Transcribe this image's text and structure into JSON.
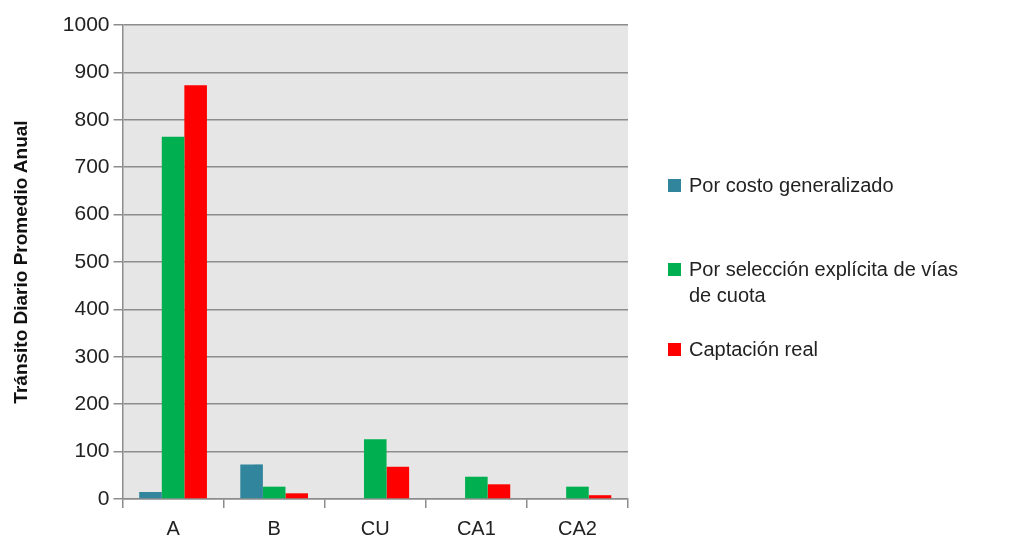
{
  "chart_data": {
    "type": "bar",
    "ylabel": "Tránsito Diario Promedio Anual",
    "categories": [
      "A",
      "B",
      "CU",
      "CA1",
      "CA2"
    ],
    "series": [
      {
        "name": "Por costo generalizado",
        "color": "#31859c",
        "values": [
          15,
          73,
          0,
          0,
          0
        ]
      },
      {
        "name": "Por selección explícita de vías de cuota",
        "color": "#00b050",
        "values": [
          764,
          26,
          126,
          47,
          26
        ]
      },
      {
        "name": "Captación real",
        "color": "#ff0000",
        "values": [
          873,
          12,
          68,
          31,
          8
        ]
      }
    ],
    "ylim": [
      0,
      1000
    ],
    "yticks": [
      0,
      100,
      200,
      300,
      400,
      500,
      600,
      700,
      800,
      900,
      1000
    ],
    "grid": "y",
    "legend": "right"
  }
}
